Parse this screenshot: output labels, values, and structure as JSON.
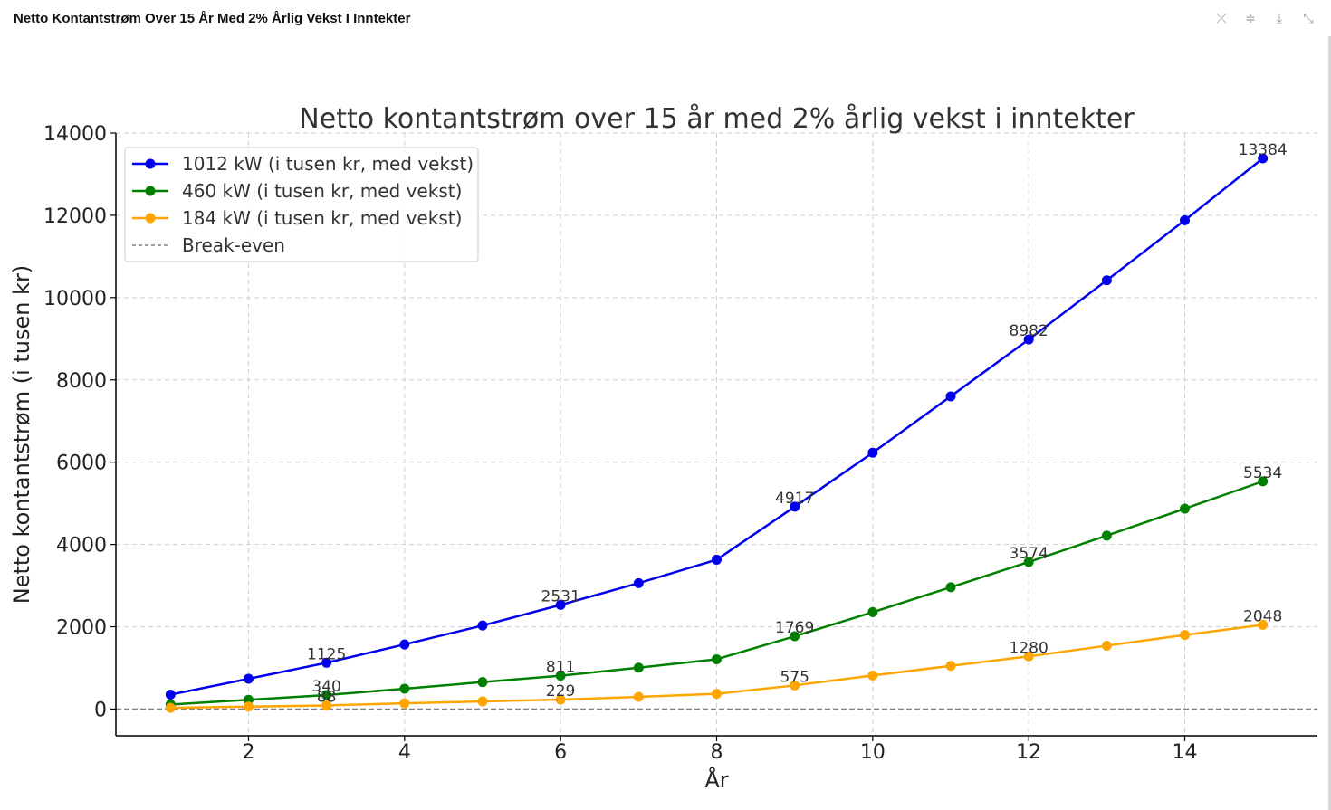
{
  "window": {
    "title": "Netto Kontantstrøm Over 15 År Med 2% Årlig Vekst I Inntekter",
    "toolbar": [
      {
        "name": "pin-off-icon",
        "glyph": "⤫"
      },
      {
        "name": "sliders-icon",
        "glyph": "≑"
      },
      {
        "name": "download-icon",
        "glyph": "⤓"
      },
      {
        "name": "collapse-icon",
        "glyph": "⤡"
      }
    ]
  },
  "chart_data": {
    "type": "line",
    "title": "Netto kontantstrøm over 15 år med 2% årlig vekst i inntekter",
    "xlabel": "År",
    "ylabel": "Netto kontantstrøm (i tusen kr)",
    "xlim": [
      0.3,
      15.7
    ],
    "ylim": [
      -650,
      14000
    ],
    "xticks": [
      2,
      4,
      6,
      8,
      10,
      12,
      14
    ],
    "yticks": [
      0,
      2000,
      4000,
      6000,
      8000,
      10000,
      12000,
      14000
    ],
    "grid": true,
    "legend_position": "top-left",
    "x": [
      1,
      2,
      3,
      4,
      5,
      6,
      7,
      8,
      9,
      10,
      11,
      12,
      13,
      14,
      15
    ],
    "series": [
      {
        "name": "1012 kW (i tusen kr, med vekst)",
        "color": "#0000ee",
        "values": [
          350,
          735,
          1125,
          1570,
          2030,
          2531,
          3060,
          3630,
          4917,
          6230,
          7600,
          8982,
          10420,
          11880,
          13384
        ],
        "labels": {
          "3": "1125",
          "6": "2531",
          "9": "4917",
          "12": "8982",
          "15": "13384"
        }
      },
      {
        "name": "460 kW (i tusen kr, med vekst)",
        "color": "#008000",
        "values": [
          110,
          225,
          340,
          495,
          655,
          811,
          1005,
          1210,
          1769,
          2355,
          2960,
          3574,
          4215,
          4870,
          5534
        ],
        "labels": {
          "3": "340",
          "6": "811",
          "9": "1769",
          "12": "3574",
          "15": "5534"
        }
      },
      {
        "name": "184 kW (i tusen kr, med vekst)",
        "color": "#ffa500",
        "values": [
          30,
          60,
          88,
          140,
          185,
          229,
          295,
          370,
          575,
          815,
          1050,
          1280,
          1540,
          1800,
          2048
        ],
        "labels": {
          "3": "88",
          "6": "229",
          "9": "575",
          "12": "1280",
          "15": "2048"
        }
      }
    ],
    "reference_line": {
      "name": "Break-even",
      "y": 0,
      "color": "#808080"
    }
  }
}
